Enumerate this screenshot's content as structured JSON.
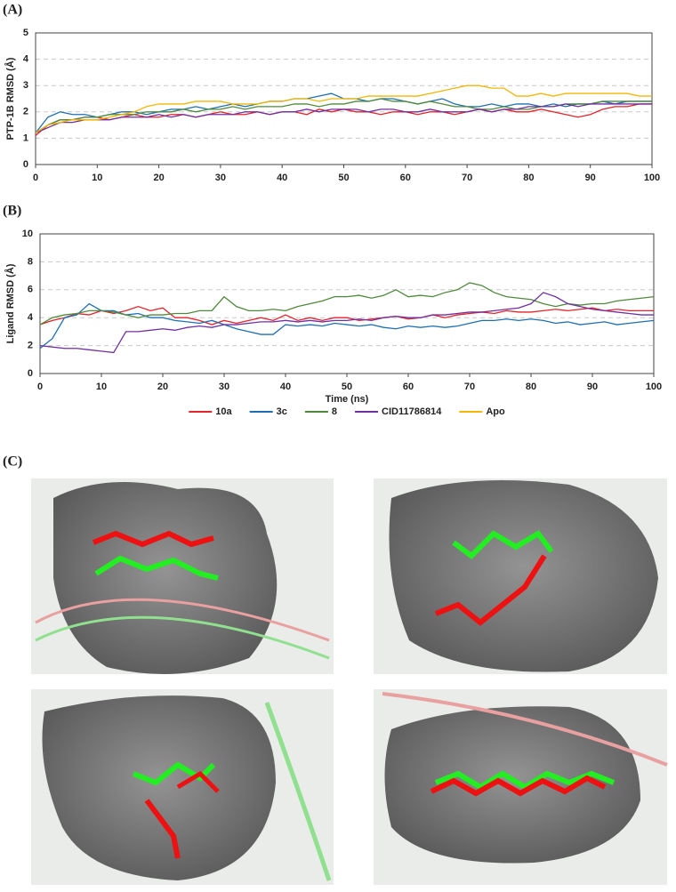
{
  "chart_data": [
    {
      "type": "line",
      "panel_label": "(A)",
      "y_label": "PTP-1B RMSD (Å)",
      "x": [
        0,
        2,
        4,
        6,
        8,
        10,
        12,
        14,
        16,
        18,
        20,
        22,
        24,
        26,
        28,
        30,
        32,
        34,
        36,
        38,
        40,
        42,
        44,
        46,
        48,
        50,
        52,
        54,
        56,
        58,
        60,
        62,
        64,
        66,
        68,
        70,
        72,
        74,
        76,
        78,
        80,
        82,
        84,
        86,
        88,
        90,
        92,
        94,
        96,
        98,
        100
      ],
      "xlim": [
        0,
        100
      ],
      "xticks": [
        0,
        10,
        20,
        30,
        40,
        50,
        60,
        70,
        80,
        90,
        100
      ],
      "ylim": [
        0,
        5
      ],
      "yticks": [
        0,
        1,
        2,
        3,
        4,
        5
      ],
      "grid": true,
      "series": [
        {
          "name": "10a",
          "color": "#e3242b",
          "values": [
            1.1,
            1.5,
            1.7,
            1.7,
            1.8,
            1.8,
            1.7,
            1.8,
            1.9,
            1.8,
            1.8,
            1.9,
            1.9,
            1.8,
            1.9,
            2.0,
            1.9,
            1.9,
            2.0,
            1.9,
            2.0,
            2.0,
            1.9,
            2.1,
            2.0,
            2.1,
            2.0,
            2.0,
            1.9,
            2.0,
            2.0,
            1.9,
            2.0,
            2.0,
            1.9,
            2.0,
            2.1,
            2.0,
            2.1,
            2.0,
            2.0,
            2.1,
            2.0,
            1.9,
            1.8,
            1.9,
            2.1,
            2.2,
            2.2,
            2.3,
            2.3
          ]
        },
        {
          "name": "3c",
          "color": "#1f6fb0",
          "values": [
            1.2,
            1.8,
            2.0,
            1.9,
            1.9,
            1.8,
            1.9,
            2.0,
            2.0,
            1.9,
            2.0,
            2.1,
            2.1,
            2.2,
            2.1,
            2.2,
            2.3,
            2.2,
            2.3,
            2.4,
            2.4,
            2.5,
            2.5,
            2.6,
            2.7,
            2.5,
            2.5,
            2.4,
            2.5,
            2.5,
            2.4,
            2.3,
            2.4,
            2.5,
            2.3,
            2.2,
            2.2,
            2.3,
            2.2,
            2.3,
            2.3,
            2.2,
            2.3,
            2.2,
            2.3,
            2.3,
            2.4,
            2.3,
            2.4,
            2.4,
            2.4
          ]
        },
        {
          "name": "8",
          "color": "#4f8a3c",
          "values": [
            1.2,
            1.5,
            1.7,
            1.7,
            1.8,
            1.8,
            1.9,
            1.9,
            1.9,
            2.0,
            2.0,
            2.0,
            2.1,
            2.0,
            2.1,
            2.1,
            2.2,
            2.1,
            2.2,
            2.2,
            2.2,
            2.3,
            2.3,
            2.2,
            2.3,
            2.3,
            2.4,
            2.4,
            2.5,
            2.4,
            2.4,
            2.3,
            2.4,
            2.3,
            2.2,
            2.2,
            2.1,
            2.1,
            2.2,
            2.1,
            2.1,
            2.2,
            2.2,
            2.3,
            2.3,
            2.3,
            2.4,
            2.4,
            2.4,
            2.4,
            2.4
          ]
        },
        {
          "name": "CID11786814",
          "color": "#7030a0",
          "values": [
            1.2,
            1.4,
            1.6,
            1.6,
            1.7,
            1.7,
            1.7,
            1.8,
            1.8,
            1.8,
            1.9,
            1.8,
            1.9,
            1.8,
            1.9,
            1.9,
            1.9,
            2.0,
            2.0,
            1.9,
            2.0,
            2.0,
            2.1,
            2.0,
            2.1,
            2.1,
            2.1,
            2.0,
            2.1,
            2.1,
            2.0,
            2.0,
            2.1,
            2.0,
            2.0,
            2.0,
            2.1,
            2.0,
            2.1,
            2.1,
            2.2,
            2.2,
            2.2,
            2.3,
            2.2,
            2.3,
            2.3,
            2.3,
            2.3,
            2.3,
            2.3
          ]
        },
        {
          "name": "Apo",
          "color": "#f2b705",
          "values": [
            1.2,
            1.5,
            1.6,
            1.7,
            1.7,
            1.7,
            1.8,
            1.9,
            2.0,
            2.2,
            2.3,
            2.3,
            2.3,
            2.4,
            2.4,
            2.4,
            2.3,
            2.3,
            2.3,
            2.4,
            2.4,
            2.5,
            2.5,
            2.4,
            2.5,
            2.5,
            2.5,
            2.6,
            2.6,
            2.6,
            2.6,
            2.6,
            2.7,
            2.8,
            2.9,
            3.0,
            3.0,
            2.9,
            2.9,
            2.6,
            2.6,
            2.7,
            2.6,
            2.7,
            2.7,
            2.7,
            2.7,
            2.7,
            2.7,
            2.6,
            2.6
          ]
        }
      ]
    },
    {
      "type": "line",
      "panel_label": "(B)",
      "y_label": "Ligand RMSD (Å)",
      "x_label": "Time (ns)",
      "x": [
        0,
        2,
        4,
        6,
        8,
        10,
        12,
        14,
        16,
        18,
        20,
        22,
        24,
        26,
        28,
        30,
        32,
        34,
        36,
        38,
        40,
        42,
        44,
        46,
        48,
        50,
        52,
        54,
        56,
        58,
        60,
        62,
        64,
        66,
        68,
        70,
        72,
        74,
        76,
        78,
        80,
        82,
        84,
        86,
        88,
        90,
        92,
        94,
        96,
        98,
        100
      ],
      "xlim": [
        0,
        100
      ],
      "xticks": [
        0,
        10,
        20,
        30,
        40,
        50,
        60,
        70,
        80,
        90,
        100
      ],
      "ylim": [
        0,
        10
      ],
      "yticks": [
        0,
        2,
        4,
        6,
        8,
        10
      ],
      "grid": true,
      "series": [
        {
          "name": "10a",
          "color": "#e3242b",
          "values": [
            3.5,
            3.8,
            4.0,
            4.3,
            4.2,
            4.5,
            4.3,
            4.5,
            4.8,
            4.5,
            4.7,
            4.0,
            4.0,
            3.8,
            3.5,
            3.8,
            3.6,
            3.8,
            4.0,
            3.8,
            4.2,
            3.8,
            4.0,
            3.8,
            4.0,
            4.0,
            3.8,
            3.9,
            4.0,
            4.1,
            3.9,
            4.0,
            4.2,
            4.0,
            4.2,
            4.3,
            4.4,
            4.3,
            4.5,
            4.4,
            4.4,
            4.5,
            4.6,
            4.5,
            4.6,
            4.7,
            4.5,
            4.6,
            4.5,
            4.5,
            4.5
          ]
        },
        {
          "name": "3c",
          "color": "#1f6fb0",
          "values": [
            1.8,
            2.5,
            4.0,
            4.2,
            5.0,
            4.5,
            4.5,
            4.2,
            4.3,
            4.0,
            4.0,
            3.8,
            3.7,
            3.6,
            3.8,
            3.5,
            3.2,
            3.0,
            2.8,
            2.8,
            3.5,
            3.4,
            3.5,
            3.4,
            3.6,
            3.5,
            3.4,
            3.5,
            3.3,
            3.2,
            3.4,
            3.3,
            3.4,
            3.3,
            3.4,
            3.6,
            3.8,
            3.8,
            3.9,
            3.8,
            3.9,
            3.8,
            3.6,
            3.7,
            3.5,
            3.6,
            3.7,
            3.5,
            3.6,
            3.7,
            3.8
          ]
        },
        {
          "name": "8",
          "color": "#4f8a3c",
          "values": [
            3.5,
            4.0,
            4.2,
            4.3,
            4.5,
            4.5,
            4.4,
            4.2,
            4.0,
            4.2,
            4.2,
            4.3,
            4.3,
            4.5,
            4.5,
            5.5,
            4.8,
            4.5,
            4.5,
            4.6,
            4.5,
            4.8,
            5.0,
            5.2,
            5.5,
            5.5,
            5.6,
            5.4,
            5.6,
            6.0,
            5.5,
            5.6,
            5.5,
            5.8,
            6.0,
            6.5,
            6.3,
            5.8,
            5.5,
            5.4,
            5.3,
            5.0,
            4.8,
            5.0,
            4.9,
            5.0,
            5.0,
            5.2,
            5.3,
            5.4,
            5.5
          ]
        },
        {
          "name": "CID11786814",
          "color": "#7030a0",
          "values": [
            2.0,
            1.9,
            1.8,
            1.8,
            1.7,
            1.6,
            1.5,
            3.0,
            3.0,
            3.1,
            3.2,
            3.1,
            3.3,
            3.4,
            3.3,
            3.5,
            3.5,
            3.6,
            3.7,
            3.7,
            3.8,
            3.7,
            3.8,
            3.7,
            3.8,
            3.8,
            3.9,
            3.8,
            4.0,
            4.1,
            4.0,
            4.0,
            4.2,
            4.2,
            4.3,
            4.4,
            4.4,
            4.5,
            4.6,
            4.7,
            5.0,
            5.8,
            5.5,
            5.0,
            4.8,
            4.6,
            4.5,
            4.4,
            4.3,
            4.2,
            4.2
          ]
        }
      ]
    }
  ],
  "panel_c": {
    "label": "(C)"
  }
}
